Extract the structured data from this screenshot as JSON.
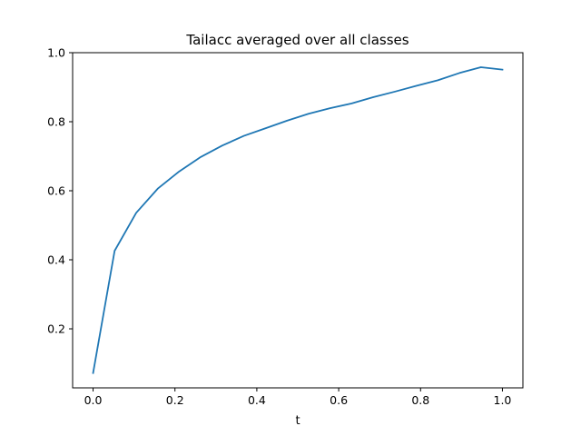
{
  "chart_data": {
    "type": "line",
    "title": "Tailacc averaged over all classes",
    "xlabel": "t",
    "ylabel": "",
    "xlim": [
      -0.05,
      1.05
    ],
    "ylim": [
      0.029,
      1.0
    ],
    "xticks": [
      0.0,
      0.2,
      0.4,
      0.6,
      0.8,
      1.0
    ],
    "xtick_labels": [
      "0.0",
      "0.2",
      "0.4",
      "0.6",
      "0.8",
      "1.0"
    ],
    "yticks": [
      0.2,
      0.4,
      0.6,
      0.8,
      1.0
    ],
    "ytick_labels": [
      "0.2",
      "0.4",
      "0.6",
      "0.8",
      "1.0"
    ],
    "grid": false,
    "legend": "none",
    "series": [
      {
        "color": "#1f77b4",
        "x": [
          0.0,
          0.0526,
          0.1053,
          0.1579,
          0.2105,
          0.2632,
          0.3158,
          0.3684,
          0.4211,
          0.4737,
          0.5263,
          0.5789,
          0.6316,
          0.6842,
          0.7368,
          0.7895,
          0.8421,
          0.8947,
          0.9474,
          1.0
        ],
        "y": [
          0.072,
          0.426,
          0.536,
          0.606,
          0.656,
          0.698,
          0.731,
          0.759,
          0.781,
          0.803,
          0.823,
          0.839,
          0.853,
          0.871,
          0.887,
          0.904,
          0.92,
          0.941,
          0.958,
          0.951
        ]
      }
    ]
  }
}
